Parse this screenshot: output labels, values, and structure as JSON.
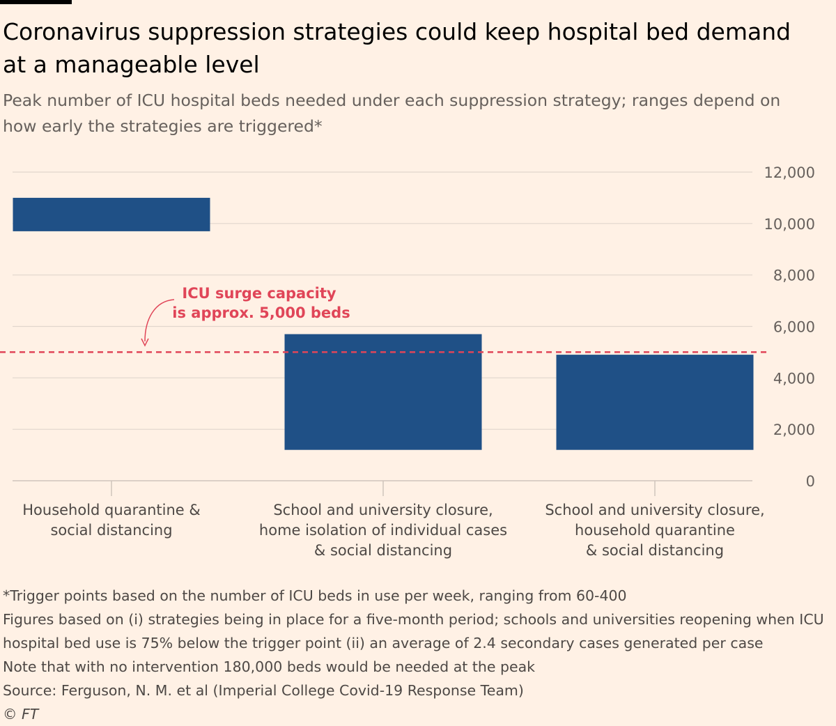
{
  "title": "Coronavirus suppression strategies could keep hospital bed demand at a manageable level",
  "subtitle": "Peak number of ICU hospital beds needed under each suppression strategy; ranges depend on how early the strategies are triggered*",
  "colors": {
    "background": "#fff1e5",
    "bar": "#1f5086",
    "threshold": "#e04558",
    "grid": "#e1d6cd",
    "tick_text": "#66605c"
  },
  "chart_data": {
    "type": "bar",
    "subtype": "floating-range",
    "categories": [
      "Household quarantine &\nsocial distancing",
      "School and university closure,\nhome isolation of individual cases\n& social distancing",
      "School and university closure,\nhousehold quarantine\n& social distancing"
    ],
    "ranges": [
      {
        "low": 9700,
        "high": 11000
      },
      {
        "low": 1200,
        "high": 5700
      },
      {
        "low": 1200,
        "high": 4900
      }
    ],
    "ylim": [
      0,
      12000
    ],
    "yticks": [
      0,
      2000,
      4000,
      6000,
      8000,
      10000,
      12000
    ],
    "ytick_labels": [
      "0",
      "2,000",
      "4,000",
      "6,000",
      "8,000",
      "10,000",
      "12,000"
    ],
    "y_axis_position": "right",
    "grid": true,
    "reference_line": {
      "value": 5000,
      "label_line1": "ICU surge capacity",
      "label_line2": "is approx. 5,000 beds",
      "style": "dashed"
    }
  },
  "notes": [
    "*Trigger points based on the number of ICU beds in use per week, ranging from 60-400",
    "Figures based on (i) strategies being in place for a five-month period; schools and universities reopening when ICU hospital bed use is 75% below the trigger point (ii) an average of 2.4 secondary cases generated per case",
    "Note that with no intervention 180,000 beds would be needed at the peak",
    "Source: Ferguson, N. M. et al (Imperial College Covid-19 Response Team)",
    "© FT"
  ]
}
